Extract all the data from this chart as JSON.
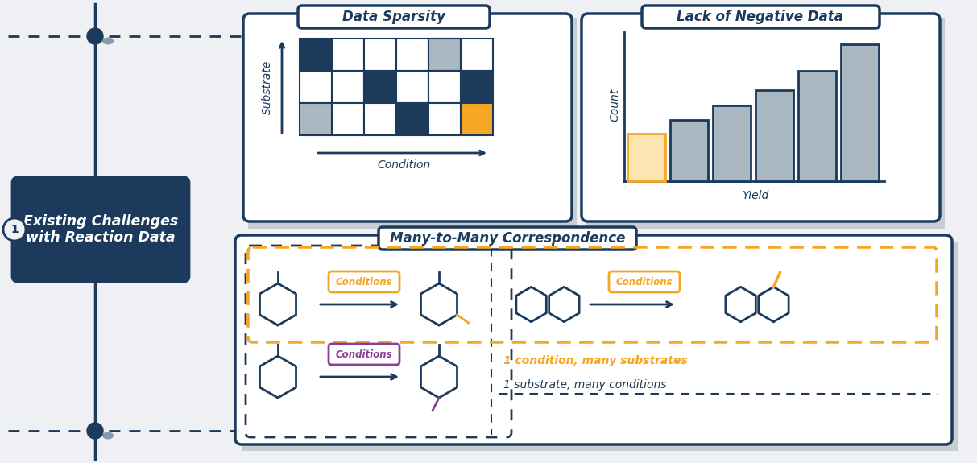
{
  "title_main": "Existing Challenges\nwith Reaction Data",
  "title_sparsity": "Data Sparsity",
  "title_negative": "Lack of Negative Data",
  "title_many": "Many-to-Many Correspondence",
  "label_substrate": "Substrate",
  "label_condition": "Condition",
  "label_count": "Count",
  "label_yield": "Yield",
  "label_conditions_orange": "Conditions",
  "label_conditions_purple": "Conditions",
  "label_one_condition": "1 condition, many substrates",
  "label_one_substrate": "1 substrate, many conditions",
  "color_dark": "#1b3a5c",
  "color_orange": "#f5a623",
  "color_orange_light": "#fce5b0",
  "color_gray": "#aab8c2",
  "color_white": "#ffffff",
  "color_bg": "#eef0f3",
  "color_shadow": "#c8ccd3",
  "color_purple": "#8b3e96",
  "matrix_rows": 3,
  "matrix_cols": 6,
  "matrix_pattern": [
    [
      1,
      0,
      0,
      0,
      2,
      0
    ],
    [
      0,
      0,
      1,
      0,
      0,
      1
    ],
    [
      2,
      0,
      0,
      1,
      0,
      3
    ]
  ],
  "bar_heights": [
    2.5,
    3.2,
    4.0,
    4.8,
    5.8,
    7.2
  ],
  "bar_colors_gray": "#aab8c2",
  "bar_first_color": "#fce5b0",
  "bar_first_edge": "#f5a623"
}
